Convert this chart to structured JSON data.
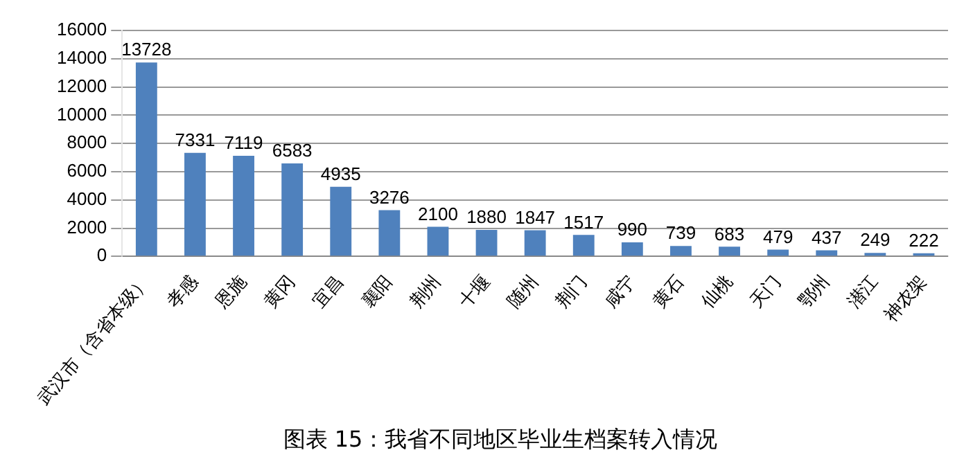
{
  "chart_data": {
    "type": "bar",
    "title": "图表 15：我省不同地区毕业生档案转入情况",
    "categories": [
      "武汉市（含省本级）",
      "孝感",
      "恩施",
      "黄冈",
      "宜昌",
      "襄阳",
      "荆州",
      "十堰",
      "随州",
      "荆门",
      "咸宁",
      "黄石",
      "仙桃",
      "天门",
      "鄂州",
      "潜江",
      "神农架"
    ],
    "values": [
      13728,
      7331,
      7119,
      6583,
      4935,
      3276,
      2100,
      1880,
      1847,
      1517,
      990,
      739,
      683,
      479,
      437,
      249,
      222
    ],
    "color": "#4f81bd",
    "ylim": [
      0,
      16000
    ],
    "yticks": [
      0,
      2000,
      4000,
      6000,
      8000,
      10000,
      12000,
      14000,
      16000
    ],
    "grid": "y",
    "data_labels": true
  }
}
